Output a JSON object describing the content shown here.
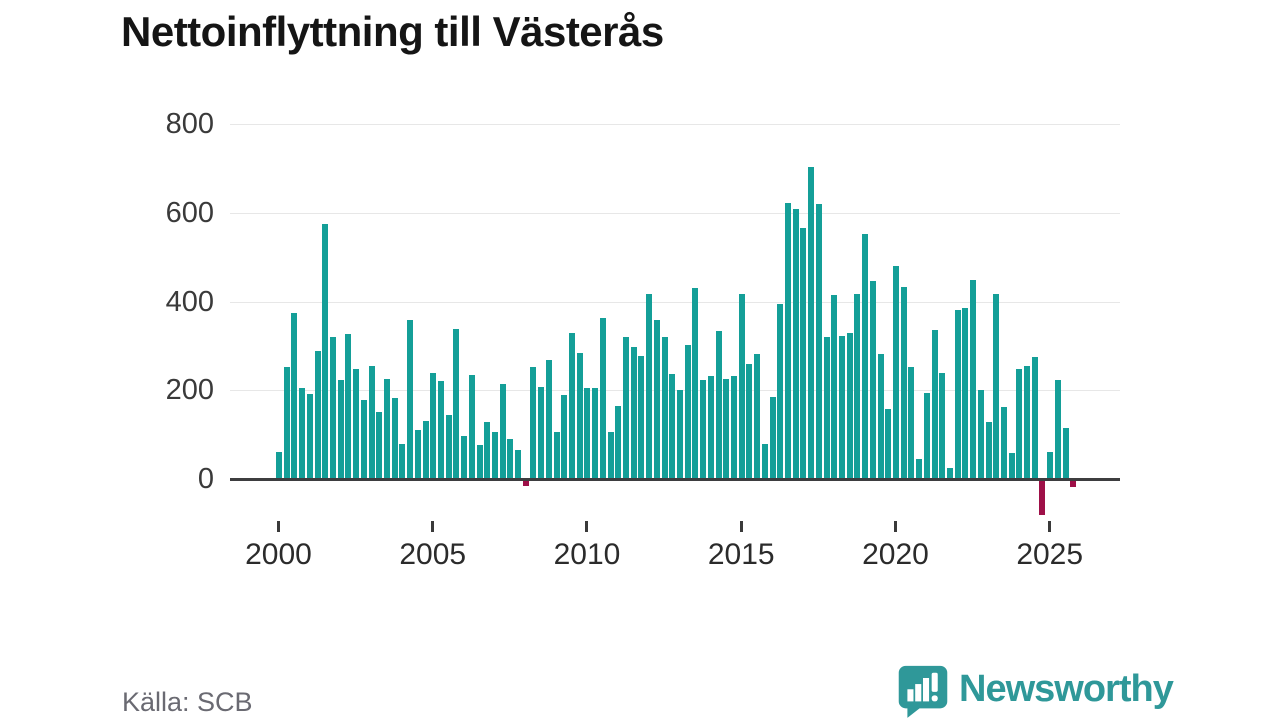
{
  "title": "Nettoinflyttning till Västerås",
  "source": "Källa: SCB",
  "logo": {
    "text": "Newsworthy",
    "icon": "bar-chart-speech-bubble-icon"
  },
  "chart_data": {
    "type": "bar",
    "title": "Nettoinflyttning till Västerås",
    "period": "quarterly",
    "start_year": 2000,
    "start_quarter": 1,
    "values": [
      60,
      253,
      373,
      205,
      192,
      289,
      575,
      321,
      222,
      327,
      249,
      177,
      254,
      152,
      225,
      183,
      80,
      358,
      110,
      130,
      240,
      220,
      145,
      339,
      98,
      235,
      77,
      128,
      106,
      214,
      90,
      66,
      -13,
      252,
      207,
      269,
      107,
      190,
      330,
      284,
      205,
      204,
      362,
      105,
      165,
      319,
      298,
      277,
      418,
      358,
      319,
      237,
      201,
      301,
      430,
      223,
      231,
      334,
      225,
      233,
      417,
      259,
      282,
      79,
      184,
      394,
      621,
      608,
      566,
      704,
      620,
      321,
      415,
      323,
      328,
      417,
      552,
      447,
      282,
      158,
      479,
      433,
      252,
      45,
      193,
      336,
      238,
      25,
      381,
      385,
      448,
      201,
      129,
      418,
      162,
      58,
      248,
      254,
      274,
      -78,
      60,
      224,
      116,
      -15
    ],
    "y_axis": {
      "ticks": [
        0,
        200,
        400,
        600,
        800
      ],
      "range": [
        -100,
        800
      ]
    },
    "x_axis": {
      "tick_years": [
        2000,
        2005,
        2010,
        2015,
        2020,
        2025
      ]
    },
    "colors": {
      "positive": "#149f98",
      "negative": "#9e1048",
      "axis": "#3d3d3f",
      "grid": "#e7e7e7"
    },
    "legend": "none",
    "grid": "horizontal"
  }
}
